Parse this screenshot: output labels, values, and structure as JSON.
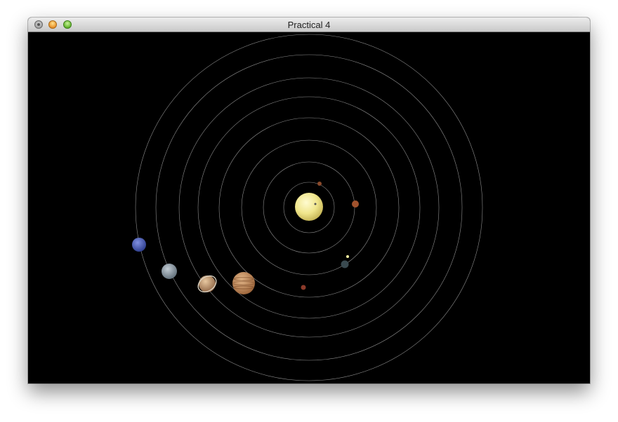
{
  "window": {
    "title": "Practical 4"
  },
  "icons": {
    "close": "close-icon",
    "minimize": "minimize-icon",
    "zoom": "zoom-icon"
  },
  "colors": {
    "titlebar": "#d6d6d6",
    "canvas_background": "#000000",
    "orbit_line": "#bfbfbf",
    "sun": "#f0e68c",
    "mercury": "#8b4a2b",
    "venus": "#a0522d",
    "earth": "#3a4a50",
    "moon": "#f5f0a0",
    "mars": "#8b3a2a",
    "jupiter": "#c08a5a",
    "saturn": "#b88a60",
    "uranus": "#8a9aa8",
    "neptune": "#4a5ab0"
  },
  "scene": {
    "bodies": [
      "sun",
      "mercury",
      "venus",
      "earth",
      "moon",
      "mars",
      "jupiter",
      "saturn",
      "uranus",
      "neptune"
    ],
    "orbit_count": 8
  }
}
